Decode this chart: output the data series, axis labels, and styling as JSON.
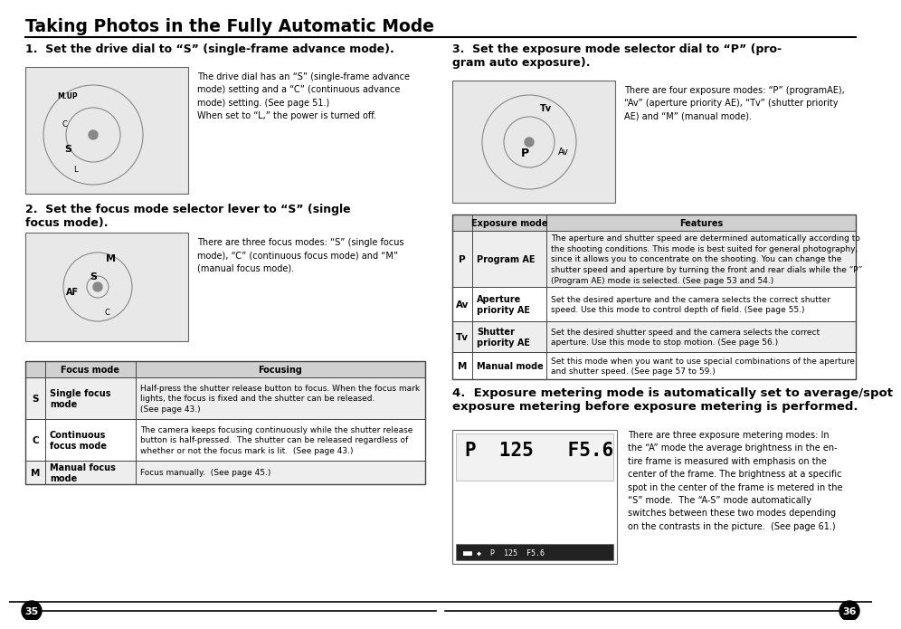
{
  "title": "Taking Photos in the Fully Automatic Mode",
  "bg_color": "#ffffff",
  "page_left": "35",
  "page_right": "36",
  "left_col": {
    "section1_heading": "1.  Set the drive dial to “S” (single-frame advance mode).",
    "section1_body": "The drive dial has an “S” (single-frame advance\nmode) setting and a “C” (continuous advance\nmode) setting. (See page 51.)\nWhen set to “L,” the power is turned off.",
    "section2_heading": "2.  Set the focus mode selector lever to “S” (single\nfocus mode).",
    "section2_body": "There are three focus modes: “S” (single focus\nmode), “C” (continuous focus mode) and “M”\n(manual focus mode).",
    "focus_table_header": [
      "Focus mode",
      "Focusing"
    ],
    "focus_table_rows": [
      [
        "S",
        "Single focus\nmode",
        "Half-press the shutter release button to focus. When the focus mark\nlights, the focus is fixed and the shutter can be released.\n(See page 43.)"
      ],
      [
        "C",
        "Continuous\nfocus mode",
        "The camera keeps focusing continuously while the shutter release\nbutton is half-pressed.  The shutter can be released regardless of\nwhether or not the focus mark is lit.  (See page 43.)"
      ],
      [
        "M",
        "Manual focus\nmode",
        "Focus manually.  (See page 45.)"
      ]
    ]
  },
  "right_col": {
    "section3_heading": "3.  Set the exposure mode selector dial to “P” (pro-\ngram auto exposure).",
    "section3_body": "There are four exposure modes: “P” (programAE),\n“Av” (aperture priority AE), “Tv” (shutter priority\nAE) and “M” (manual mode).",
    "exposure_table_header": [
      "Exposure mode",
      "Features"
    ],
    "exposure_table_rows": [
      [
        "P",
        "Program AE",
        "The aperture and shutter speed are determined automatically according to\nthe shooting conditions. This mode is best suited for general photography,\nsince it allows you to concentrate on the shooting. You can change the\nshutter speed and aperture by turning the front and rear dials while the “P”\n(Program AE) mode is selected. (See page 53 and 54.)"
      ],
      [
        "Av",
        "Aperture\npriority AE",
        "Set the desired aperture and the camera selects the correct shutter\nspeed. Use this mode to control depth of field. (See page 55.)"
      ],
      [
        "Tv",
        "Shutter\npriority AE",
        "Set the desired shutter speed and the camera selects the correct\naperture. Use this mode to stop motion. (See page 56.)"
      ],
      [
        "M",
        "Manual mode",
        "Set this mode when you want to use special combinations of the aperture\nand shutter speed. (See page 57 to 59.)"
      ]
    ],
    "section4_heading": "4.  Exposure metering mode is automatically set to average/spot\nexposure metering before exposure metering is performed.",
    "section4_body": "There are three exposure metering modes: In\nthe “A” mode the average brightness in the en-\ntire frame is measured with emphasis on the\ncenter of the frame. The brightness at a specific\nspot in the center of the frame is metered in the\n“S” mode.  The “A-S” mode automatically\nswitches between these two modes depending\non the contrasts in the picture.  (See page 61.)"
  },
  "header_gray": "#d0d0d0",
  "row_light": "#eeeeee",
  "row_white": "#ffffff",
  "border_color": "#444444",
  "text_color": "#000000",
  "image_bg": "#e8e8e8",
  "image_border": "#666666"
}
